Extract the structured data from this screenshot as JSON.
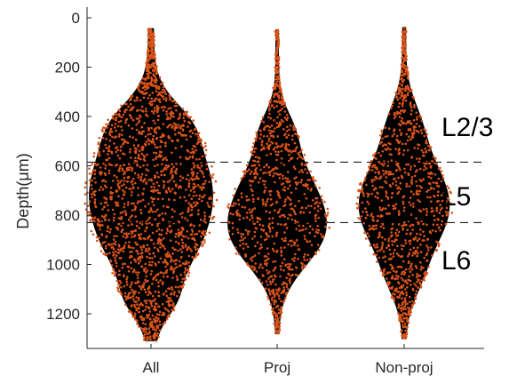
{
  "chart_data": {
    "type": "scatter",
    "subtype": "beeswarm",
    "title": "",
    "xlabel": "",
    "ylabel": "Depth(μm)",
    "y_reversed": true,
    "ylim": [
      0,
      1350
    ],
    "yticks": [
      0,
      200,
      400,
      600,
      800,
      1000,
      1200
    ],
    "ytick_labels": [
      "0",
      "200",
      "400",
      "600",
      "800",
      "1000",
      "1200"
    ],
    "categories": [
      "All",
      "Proj",
      "Non-proj"
    ],
    "point_color": "#d95319",
    "swarm_core_color": "#000000",
    "grid": false,
    "boundaries": [
      {
        "depth": 585,
        "style": "dashed"
      },
      {
        "depth": 830,
        "style": "dashed"
      }
    ],
    "layer_labels": [
      {
        "text": "L2/3",
        "depth": 440
      },
      {
        "text": "L5",
        "depth": 720
      },
      {
        "text": "L6",
        "depth": 980
      }
    ],
    "distributions": [
      {
        "category": "All",
        "depth_range": [
          45,
          1310
        ],
        "mode_depths": [
          590,
          830
        ]
      },
      {
        "category": "Proj",
        "depth_range": [
          50,
          1280
        ],
        "mode_depths": [
          600,
          830
        ]
      },
      {
        "category": "Non-proj",
        "depth_range": [
          40,
          1300
        ],
        "mode_depths": [
          640,
          800
        ]
      }
    ]
  }
}
